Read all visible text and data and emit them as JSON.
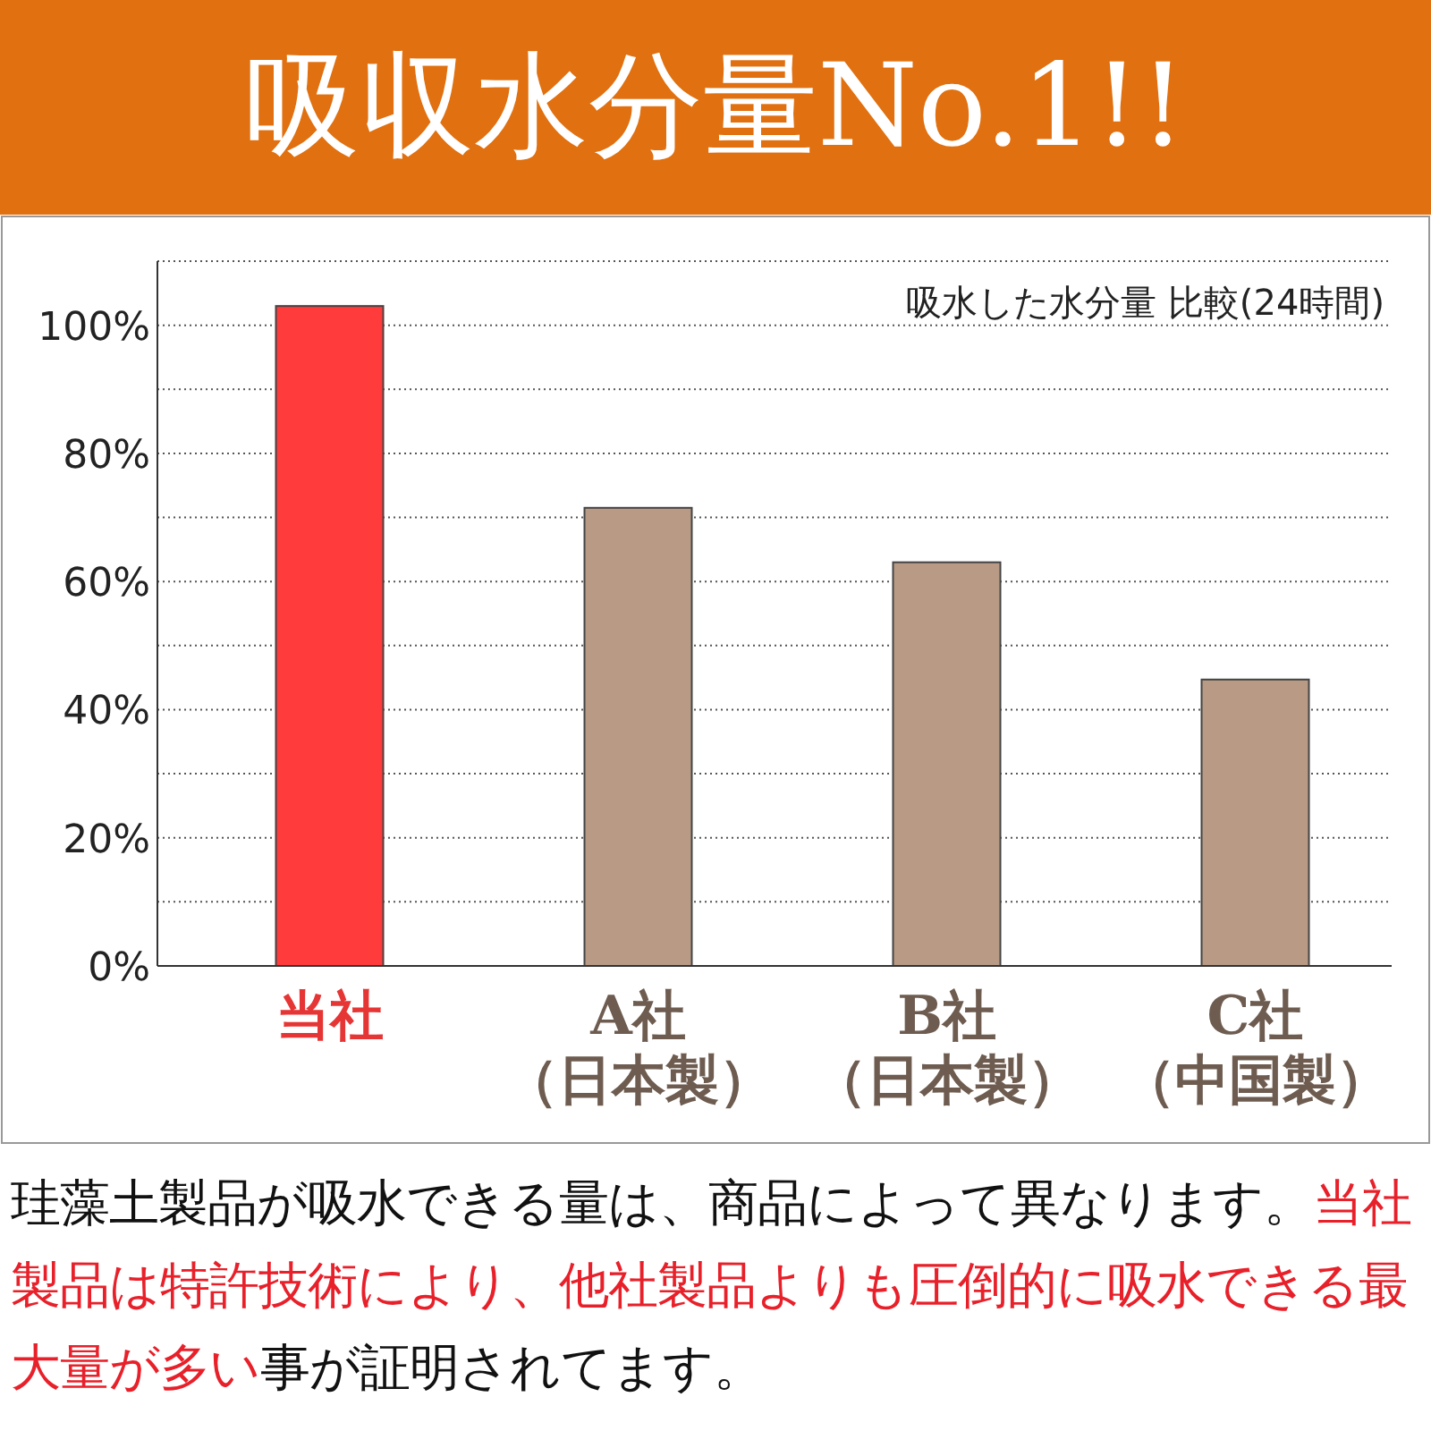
{
  "chart_data": {
    "type": "bar",
    "title": "吸収水分量No.1!!",
    "subtitle": "吸水した水分量 比較(24時間)",
    "categories": [
      "当社",
      "A社（日本製）",
      "B社（日本製）",
      "C社（中国製）"
    ],
    "values": [
      103,
      71.5,
      63,
      44.7
    ],
    "colors": [
      "#ff3b3b",
      "#b89a85",
      "#b89a85",
      "#b89a85"
    ],
    "ylim": [
      0,
      110
    ],
    "yticks": [
      {
        "value": 0,
        "label": "0%"
      },
      {
        "value": 10,
        "label": null
      },
      {
        "value": 20,
        "label": "20%"
      },
      {
        "value": 30,
        "label": null
      },
      {
        "value": 40,
        "label": "40%"
      },
      {
        "value": 50,
        "label": null
      },
      {
        "value": 60,
        "label": "60%"
      },
      {
        "value": 70,
        "label": null
      },
      {
        "value": 80,
        "label": "80%"
      },
      {
        "value": 90,
        "label": null
      },
      {
        "value": 100,
        "label": "100%"
      },
      {
        "value": 110,
        "label": null
      }
    ],
    "grid": "y",
    "annotations": [
      "珪藻土製品が吸水できる量は、商品によって異なります。",
      "当社製品は特許技術により、他社製品よりも圧倒的に吸水できる最大量が多い",
      "事が証明されてます。"
    ]
  }
}
